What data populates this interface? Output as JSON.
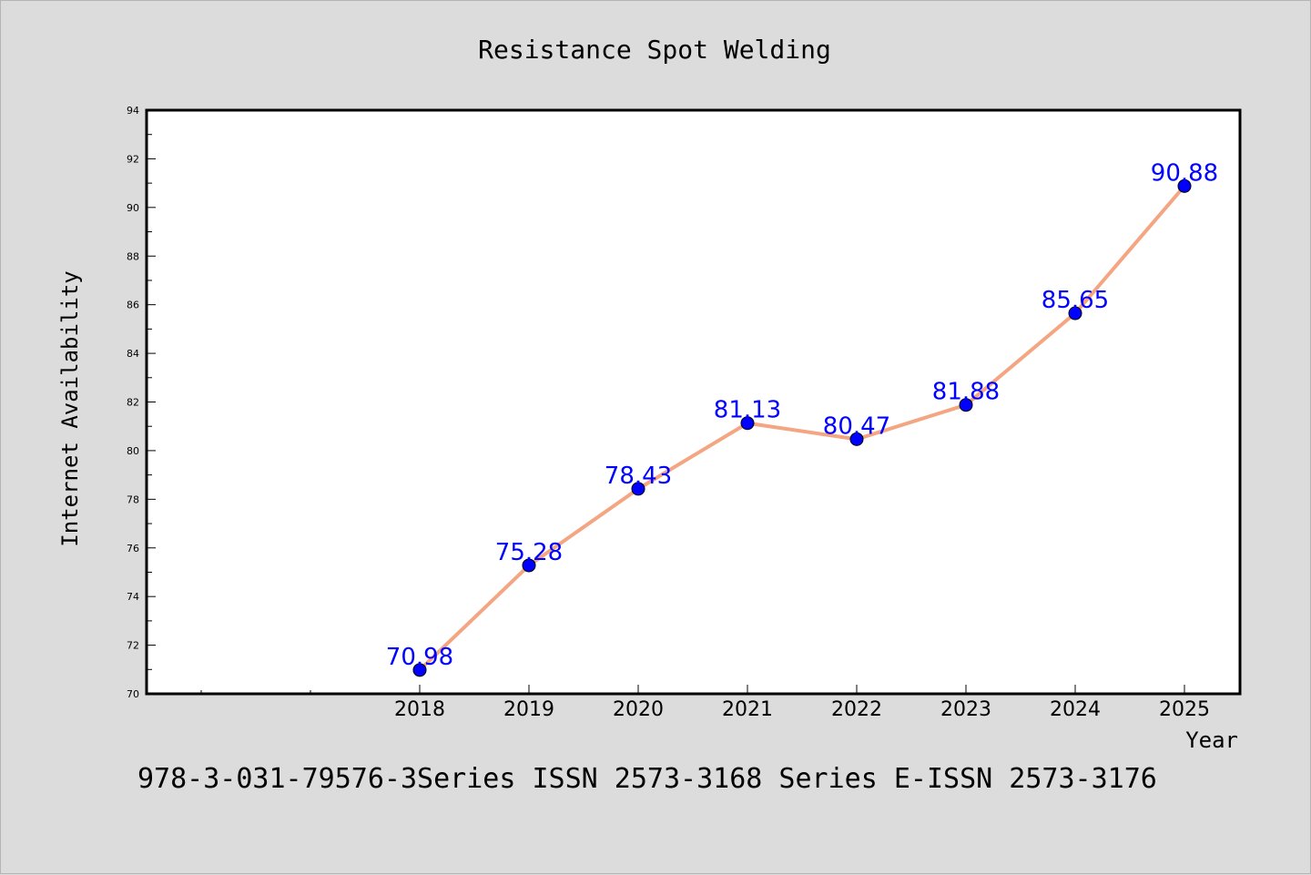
{
  "chart_data": {
    "type": "line",
    "title": "Resistance Spot Welding",
    "xlabel": "Year",
    "ylabel": "Internet Availability",
    "x": [
      "2018",
      "2019",
      "2020",
      "2021",
      "2022",
      "2023",
      "2024",
      "2025"
    ],
    "series": [
      {
        "values": [
          70.98,
          75.28,
          78.43,
          81.13,
          80.47,
          81.88,
          85.65,
          90.88
        ],
        "data_labels": [
          "70.98",
          "75.28",
          "78.43",
          "81.13",
          "80.47",
          "81.88",
          "85.65",
          "90.88"
        ],
        "line_color": "#f4a582",
        "marker_color": "#0000ff",
        "label_color": "#0000ff"
      }
    ],
    "yticks": [
      "70",
      "72",
      "74",
      "76",
      "78",
      "80",
      "82",
      "84",
      "86",
      "88",
      "90",
      "92",
      "94"
    ],
    "ylim": [
      70,
      94
    ],
    "grid": false,
    "legend": "none"
  },
  "footer_text": "978-3-031-79576-3Series ISSN 2573-3168 Series E-ISSN 2573-3176",
  "colors": {
    "background": "#dcdcdc",
    "plot_background": "#ffffff",
    "axis": "#000000"
  }
}
